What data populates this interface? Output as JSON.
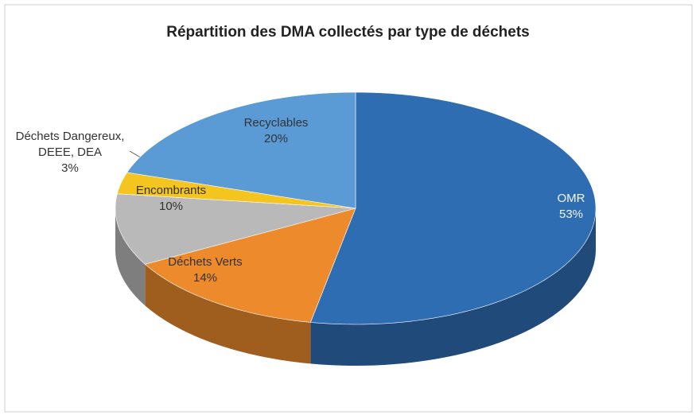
{
  "chart_data": {
    "type": "pie3d",
    "title": "Répartition des DMA collectés par type de déchets",
    "categories": [
      "OMR",
      "Déchets Verts",
      "Encombrants",
      "Déchets Dangereux, DEEE, DEA",
      "Recyclables"
    ],
    "values": [
      53,
      14,
      10,
      3,
      20
    ],
    "value_labels": [
      "53%",
      "14%",
      "10%",
      "3%",
      "20%"
    ],
    "colors": [
      "#2f6db3",
      "#ec8a2c",
      "#b9b9b9",
      "#f4c41f",
      "#5a9bd6"
    ]
  }
}
